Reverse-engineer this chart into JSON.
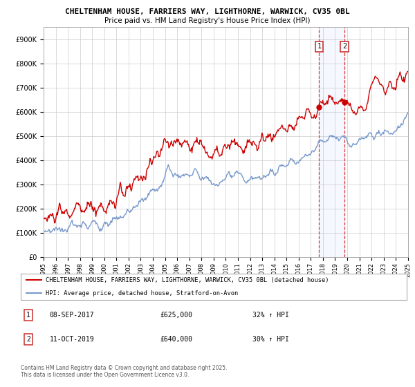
{
  "title_line1": "CHELTENHAM HOUSE, FARRIERS WAY, LIGHTHORNE, WARWICK, CV35 0BL",
  "title_line2": "Price paid vs. HM Land Registry's House Price Index (HPI)",
  "red_label": "CHELTENHAM HOUSE, FARRIERS WAY, LIGHTHORNE, WARWICK, CV35 0BL (detached house)",
  "blue_label": "HPI: Average price, detached house, Stratford-on-Avon",
  "transaction1_date": "08-SEP-2017",
  "transaction1_price": "£625,000",
  "transaction1_hpi": "32% ↑ HPI",
  "transaction2_date": "11-OCT-2019",
  "transaction2_price": "£640,000",
  "transaction2_hpi": "30% ↑ HPI",
  "red_color": "#cc0000",
  "blue_color": "#7799cc",
  "vline_color": "#dd3333",
  "bg_color": "#ffffff",
  "grid_color": "#cccccc",
  "ylim_min": 0,
  "ylim_max": 950000,
  "year_start": 1995,
  "year_end": 2025,
  "transaction1_year": 2017.69,
  "transaction2_year": 2019.78,
  "footer": "Contains HM Land Registry data © Crown copyright and database right 2025.\nThis data is licensed under the Open Government Licence v3.0."
}
